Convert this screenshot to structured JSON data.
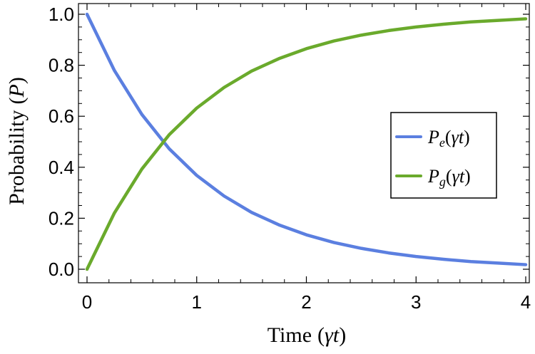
{
  "chart_data": {
    "type": "line",
    "xlabel": {
      "text": "Time",
      "paren_open": "(",
      "sym": "γ",
      "var": "t",
      "paren_close": ")"
    },
    "ylabel": {
      "text": "Probability",
      "paren_open": "(",
      "var": "P",
      "paren_close": ")"
    },
    "xlim": [
      0,
      4
    ],
    "ylim": [
      0,
      1
    ],
    "x_ticks": [
      "0",
      "1",
      "2",
      "3",
      "4"
    ],
    "y_ticks": [
      "0.0",
      "0.2",
      "0.4",
      "0.6",
      "0.8",
      "1.0"
    ],
    "legend_position": "right-middle",
    "grid": false,
    "series": [
      {
        "name": "Pe(γt)",
        "label": {
          "base": "P",
          "sub": "e",
          "arg_open": "(",
          "arg_sym": "γ",
          "arg_var": "t",
          "arg_close": ")"
        },
        "color": "#5B7FE0",
        "x": [
          0,
          0.25,
          0.5,
          0.75,
          1,
          1.25,
          1.5,
          1.75,
          2,
          2.25,
          2.5,
          2.75,
          3,
          3.25,
          3.5,
          3.75,
          4
        ],
        "y": [
          1.0,
          0.779,
          0.607,
          0.472,
          0.368,
          0.287,
          0.223,
          0.174,
          0.135,
          0.105,
          0.082,
          0.064,
          0.05,
          0.039,
          0.03,
          0.024,
          0.018
        ]
      },
      {
        "name": "Pg(γt)",
        "label": {
          "base": "P",
          "sub": "g",
          "arg_open": "(",
          "arg_sym": "γ",
          "arg_var": "t",
          "arg_close": ")"
        },
        "color": "#6AAA2C",
        "x": [
          0,
          0.25,
          0.5,
          0.75,
          1,
          1.25,
          1.5,
          1.75,
          2,
          2.25,
          2.5,
          2.75,
          3,
          3.25,
          3.5,
          3.75,
          4
        ],
        "y": [
          0.0,
          0.221,
          0.393,
          0.528,
          0.632,
          0.713,
          0.777,
          0.826,
          0.865,
          0.895,
          0.918,
          0.936,
          0.95,
          0.961,
          0.97,
          0.976,
          0.982
        ]
      }
    ]
  }
}
